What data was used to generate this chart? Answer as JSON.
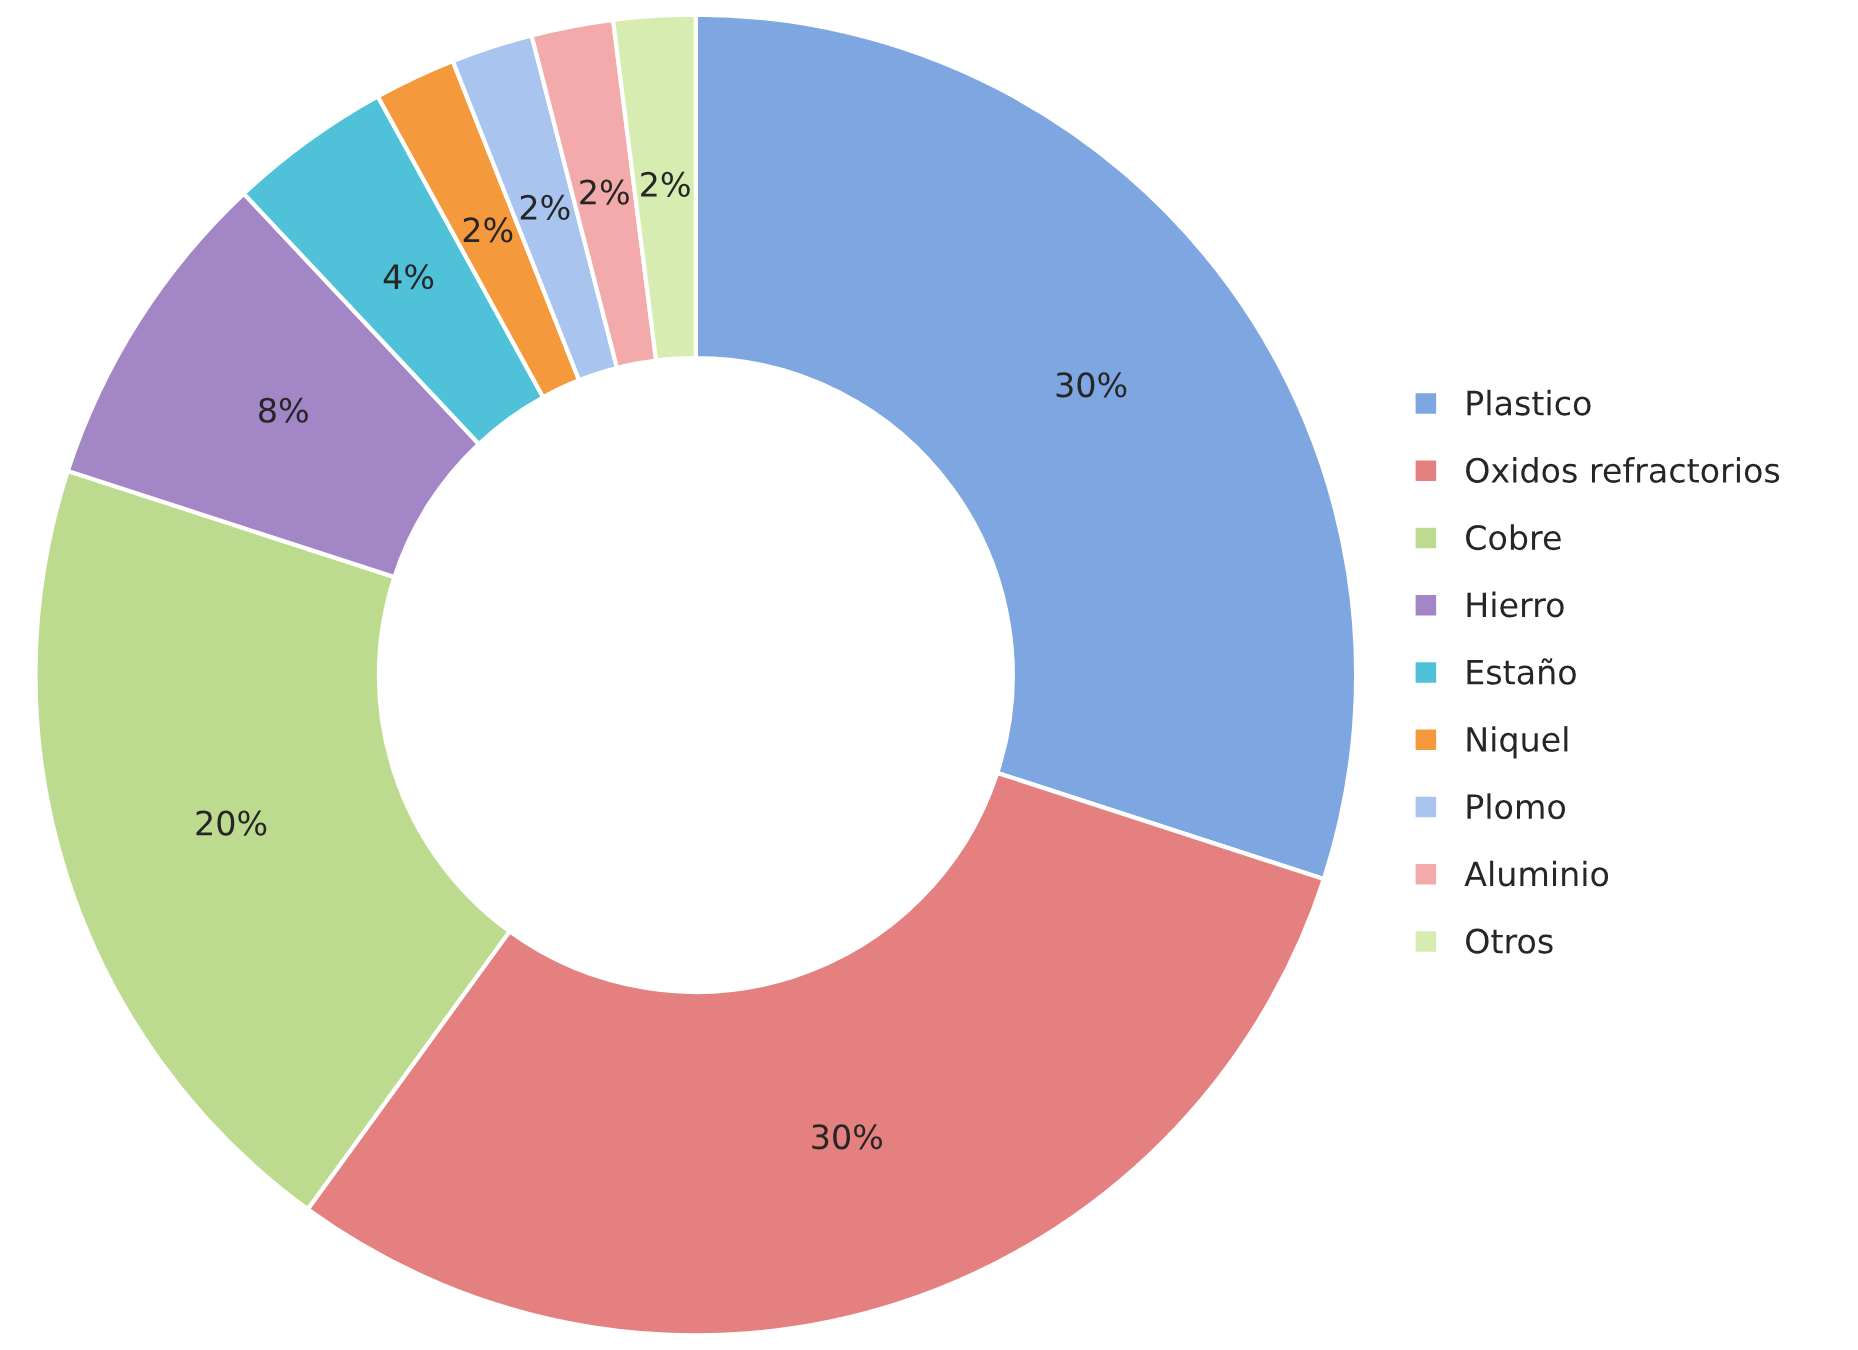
{
  "chart_data": {
    "type": "donut",
    "categories": [
      "Plastico",
      "Oxidos refractorios",
      "Cobre",
      "Hierro",
      "Estaño",
      "Niquel",
      "Plomo",
      "Aluminio",
      "Otros"
    ],
    "values": [
      30,
      30,
      20,
      8,
      4,
      2,
      2,
      2,
      2
    ],
    "value_labels": [
      "30%",
      "30%",
      "20%",
      "8%",
      "4%",
      "2%",
      "2%",
      "2%",
      "2%"
    ],
    "colors": [
      "#7ea6e0",
      "#e58080",
      "#bddb8e",
      "#a386c6",
      "#4fc1d9",
      "#f59a3c",
      "#a9c4ee",
      "#f2aaaa",
      "#d6ecb0"
    ],
    "legend": "right"
  }
}
